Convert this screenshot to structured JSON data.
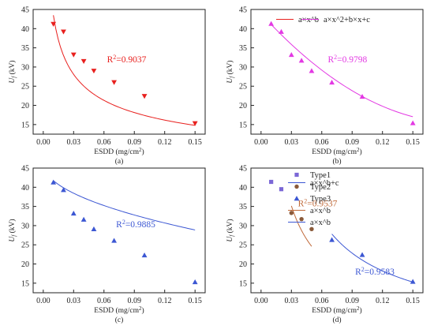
{
  "chart_data": [
    {
      "type": "scatter",
      "panel_label": "(a)",
      "xlabel": "ESDD (mg/cm²)",
      "ylabel": "Uf (kV)",
      "xlim": [
        -0.01,
        0.16
      ],
      "ylim": [
        12.5,
        45
      ],
      "xticks": [
        "0.00",
        "0.03",
        "0.06",
        "0.09",
        "0.12",
        "0.15"
      ],
      "yticks": [
        "15",
        "20",
        "25",
        "30",
        "35",
        "40",
        "45"
      ],
      "marker_color": "#e8201e",
      "marker": "triangle-down",
      "points": [
        [
          0.01,
          41.2
        ],
        [
          0.02,
          39.2
        ],
        [
          0.03,
          33.2
        ],
        [
          0.04,
          31.5
        ],
        [
          0.05,
          29.0
        ],
        [
          0.07,
          26.0
        ],
        [
          0.1,
          22.4
        ],
        [
          0.15,
          15.3
        ]
      ],
      "fits": [
        {
          "name": "a×x^b",
          "color": "#e8201e",
          "model": "power",
          "a": 6.945,
          "b": -0.3984,
          "c": 0,
          "x_from": 0.01,
          "x_to": 0.15,
          "r2": "0.9037",
          "r2_anchor": [
            0.063,
            31.2
          ]
        }
      ],
      "legend_position": "top-right"
    },
    {
      "type": "scatter",
      "panel_label": "(b)",
      "xlabel": "ESDD (mg/cm²)",
      "ylabel": "Uf (kV)",
      "xlim": [
        -0.01,
        0.16
      ],
      "ylim": [
        12.5,
        45
      ],
      "xticks": [
        "0.00",
        "0.03",
        "0.06",
        "0.09",
        "0.12",
        "0.15"
      ],
      "yticks": [
        "15",
        "20",
        "25",
        "30",
        "35",
        "40",
        "45"
      ],
      "marker_color": "#e339e3",
      "marker": "triangle-up",
      "points": [
        [
          0.01,
          41.3
        ],
        [
          0.02,
          39.2
        ],
        [
          0.03,
          33.2
        ],
        [
          0.04,
          31.7
        ],
        [
          0.05,
          29.0
        ],
        [
          0.07,
          26.0
        ],
        [
          0.1,
          22.3
        ],
        [
          0.15,
          15.4
        ]
      ],
      "fits": [
        {
          "name": "a×x^2+b×x+c",
          "color": "#e339e3",
          "model": "quad",
          "a": 733,
          "b": -289,
          "c": 43.9,
          "x_from": 0.01,
          "x_to": 0.15,
          "r2": "0.9798",
          "r2_anchor": [
            0.066,
            31.2
          ]
        }
      ],
      "legend_position": "top-right"
    },
    {
      "type": "scatter",
      "panel_label": "(c)",
      "xlabel": "ESDD (mg/cm²)",
      "ylabel": "Uf (kV)",
      "xlim": [
        -0.01,
        0.16
      ],
      "ylim": [
        12.5,
        45
      ],
      "xticks": [
        "0.00",
        "0.03",
        "0.06",
        "0.09",
        "0.12",
        "0.15"
      ],
      "yticks": [
        "15",
        "20",
        "25",
        "30",
        "35",
        "40",
        "45"
      ],
      "marker_color": "#3c57d3",
      "marker": "triangle-up",
      "points": [
        [
          0.01,
          41.3
        ],
        [
          0.02,
          39.3
        ],
        [
          0.03,
          33.2
        ],
        [
          0.04,
          31.6
        ],
        [
          0.05,
          29.1
        ],
        [
          0.07,
          26.1
        ],
        [
          0.1,
          22.3
        ],
        [
          0.15,
          15.3
        ]
      ],
      "fits": [
        {
          "name": "a×x^b+c",
          "color": "#3c57d3",
          "model": "power",
          "a": -44.76,
          "b": 0.5,
          "c": 46.2,
          "x_from": 0.01,
          "x_to": 0.15,
          "r2": "0.9885",
          "r2_anchor": [
            0.072,
            29.6
          ]
        }
      ],
      "legend_position": "top-right"
    },
    {
      "type": "scatter",
      "panel_label": "(d)",
      "xlabel": "ESDD (mg/cm²)",
      "ylabel": "Uf (kV)",
      "xlim": [
        -0.01,
        0.16
      ],
      "ylim": [
        12.5,
        45
      ],
      "xticks": [
        "0.00",
        "0.03",
        "0.06",
        "0.09",
        "0.12",
        "0.15"
      ],
      "yticks": [
        "15",
        "20",
        "25",
        "30",
        "35",
        "40",
        "45"
      ],
      "series": [
        {
          "name": "Type1",
          "color": "#7b67d6",
          "marker": "square",
          "points": [
            [
              0.01,
              41.4
            ],
            [
              0.02,
              39.5
            ]
          ]
        },
        {
          "name": "Type2",
          "color": "#8a5a3a",
          "marker": "circle",
          "points": [
            [
              0.03,
              33.3
            ],
            [
              0.04,
              31.7
            ],
            [
              0.05,
              29.1
            ]
          ]
        },
        {
          "name": "Type3",
          "color": "#3c57d3",
          "marker": "triangle-up",
          "points": [
            [
              0.07,
              26.3
            ],
            [
              0.1,
              22.4
            ],
            [
              0.15,
              15.4
            ]
          ]
        }
      ],
      "fits": [
        {
          "name": "a×x^b",
          "color": "#c06a3a",
          "model": "power",
          "a": 3.02,
          "b": -0.7,
          "c": 0,
          "x_from": 0.03,
          "x_to": 0.05,
          "r2": "0.9537",
          "r2_anchor": [
            0.0365,
            35.0
          ]
        },
        {
          "name": "a×x^b",
          "color": "#3c57d3",
          "model": "power",
          "a": 3.45,
          "b": -0.7848,
          "c": 0,
          "x_from": 0.07,
          "x_to": 0.15,
          "r2": "0.9583",
          "r2_anchor": [
            0.093,
            17.2
          ]
        }
      ],
      "legend_position": "top-right"
    }
  ]
}
